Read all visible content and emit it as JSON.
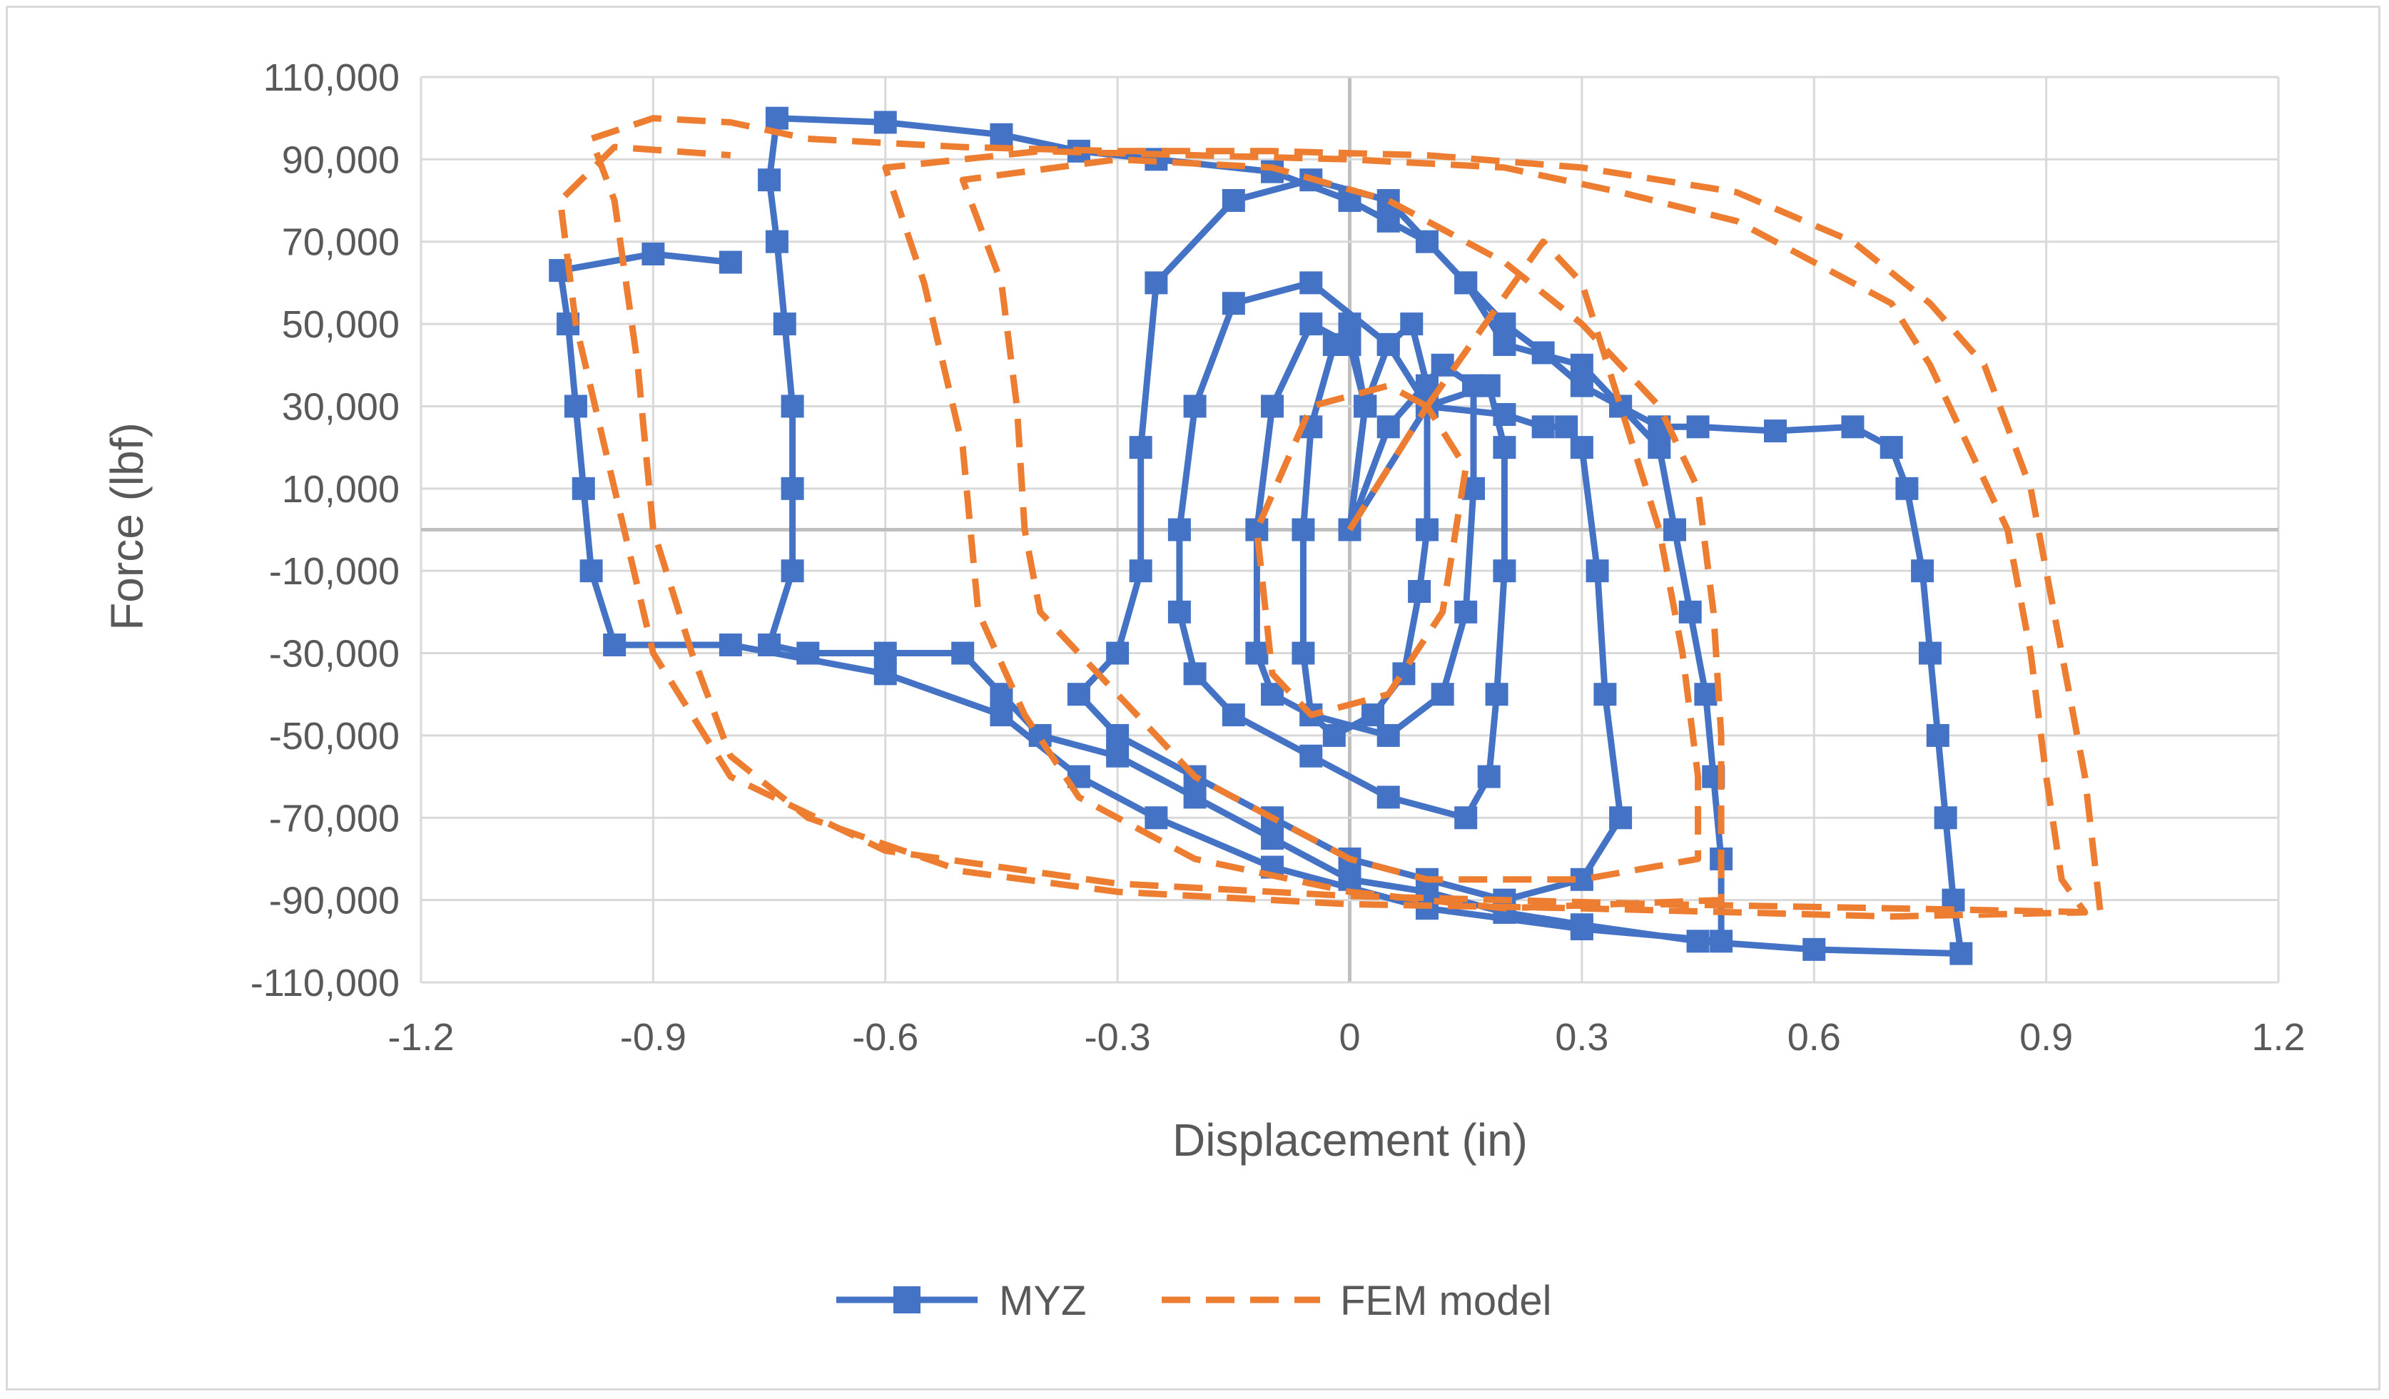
{
  "chart_data": {
    "type": "scatter",
    "title": "",
    "xlabel": "Displacement (in)",
    "ylabel": "Force (lbf)",
    "xlim": [
      -1.2,
      1.2
    ],
    "ylim": [
      -110000,
      110000
    ],
    "x_ticks": [
      -1.2,
      -0.9,
      -0.6,
      -0.3,
      0,
      0.3,
      0.6,
      0.9,
      1.2
    ],
    "x_tick_labels": [
      "-1.2",
      "-0.9",
      "-0.6",
      "-0.3",
      "0",
      "0.3",
      "0.6",
      "0.9",
      "1.2"
    ],
    "y_ticks": [
      110000,
      90000,
      70000,
      50000,
      30000,
      10000,
      -10000,
      -30000,
      -50000,
      -70000,
      -90000,
      -110000
    ],
    "y_tick_labels": [
      "110,000",
      "90,000",
      "70,000",
      "50,000",
      "30,000",
      "10,000",
      "-10,000",
      "-30,000",
      "-50,000",
      "-70,000",
      "-90,000",
      "-110,000"
    ],
    "grid": true,
    "legend_position": "bottom",
    "series": [
      {
        "name": "MYZ",
        "style": "solid line with square markers",
        "color": "#4472c4",
        "loops": [
          [
            [
              0.0,
              0
            ],
            [
              0.02,
              30000
            ],
            [
              0.05,
              45000
            ],
            [
              0.08,
              50000
            ],
            [
              0.1,
              35000
            ],
            [
              0.1,
              0
            ],
            [
              0.09,
              -15000
            ],
            [
              0.07,
              -35000
            ],
            [
              0.03,
              -45000
            ],
            [
              -0.02,
              -50000
            ],
            [
              -0.05,
              -45000
            ],
            [
              -0.06,
              -30000
            ],
            [
              -0.06,
              0
            ],
            [
              -0.05,
              25000
            ],
            [
              -0.02,
              45000
            ],
            [
              0.0,
              50000
            ],
            [
              0.02,
              30000
            ],
            [
              0.0,
              0
            ]
          ],
          [
            [
              0.0,
              0
            ],
            [
              0.05,
              25000
            ],
            [
              0.12,
              40000
            ],
            [
              0.16,
              35000
            ],
            [
              0.16,
              10000
            ],
            [
              0.15,
              -20000
            ],
            [
              0.12,
              -40000
            ],
            [
              0.05,
              -50000
            ],
            [
              -0.05,
              -45000
            ],
            [
              -0.1,
              -40000
            ],
            [
              -0.12,
              -30000
            ],
            [
              -0.12,
              0
            ],
            [
              -0.1,
              30000
            ],
            [
              -0.05,
              50000
            ],
            [
              0.0,
              45000
            ],
            [
              0.02,
              30000
            ],
            [
              0.0,
              0
            ]
          ],
          [
            [
              0.0,
              0
            ],
            [
              0.1,
              30000
            ],
            [
              0.18,
              35000
            ],
            [
              0.2,
              20000
            ],
            [
              0.2,
              -10000
            ],
            [
              0.19,
              -40000
            ],
            [
              0.18,
              -60000
            ],
            [
              0.15,
              -70000
            ],
            [
              0.05,
              -65000
            ],
            [
              -0.05,
              -55000
            ],
            [
              -0.15,
              -45000
            ],
            [
              -0.2,
              -35000
            ],
            [
              -0.22,
              -20000
            ],
            [
              -0.22,
              0
            ],
            [
              -0.2,
              30000
            ],
            [
              -0.15,
              55000
            ],
            [
              -0.05,
              60000
            ],
            [
              0.05,
              45000
            ],
            [
              0.1,
              30000
            ]
          ],
          [
            [
              0.1,
              30000
            ],
            [
              0.2,
              28000
            ],
            [
              0.25,
              25000
            ],
            [
              0.28,
              25000
            ],
            [
              0.3,
              20000
            ],
            [
              0.32,
              -10000
            ],
            [
              0.33,
              -40000
            ],
            [
              0.35,
              -70000
            ],
            [
              0.3,
              -85000
            ],
            [
              0.2,
              -90000
            ],
            [
              0.1,
              -85000
            ],
            [
              0.0,
              -80000
            ],
            [
              -0.1,
              -70000
            ],
            [
              -0.2,
              -60000
            ],
            [
              -0.3,
              -50000
            ],
            [
              -0.35,
              -40000
            ],
            [
              -0.3,
              -30000
            ],
            [
              -0.27,
              -10000
            ],
            [
              -0.27,
              20000
            ],
            [
              -0.25,
              60000
            ],
            [
              -0.15,
              80000
            ],
            [
              -0.05,
              85000
            ],
            [
              0.05,
              80000
            ],
            [
              0.15,
              60000
            ],
            [
              0.2,
              45000
            ],
            [
              0.3,
              40000
            ],
            [
              0.35,
              30000
            ],
            [
              0.4,
              25000
            ],
            [
              0.45,
              25000
            ],
            [
              0.55,
              24000
            ],
            [
              0.65,
              25000
            ],
            [
              0.7,
              20000
            ],
            [
              0.72,
              10000
            ],
            [
              0.74,
              -10000
            ],
            [
              0.75,
              -30000
            ],
            [
              0.76,
              -50000
            ],
            [
              0.77,
              -70000
            ],
            [
              0.78,
              -90000
            ],
            [
              0.79,
              -103000
            ],
            [
              0.6,
              -102000
            ],
            [
              0.45,
              -100000
            ],
            [
              0.3,
              -96000
            ],
            [
              0.2,
              -93000
            ],
            [
              0.1,
              -88000
            ],
            [
              0.0,
              -85000
            ],
            [
              -0.1,
              -75000
            ],
            [
              -0.2,
              -65000
            ],
            [
              -0.3,
              -55000
            ],
            [
              -0.4,
              -50000
            ],
            [
              -0.45,
              -40000
            ],
            [
              -0.5,
              -30000
            ],
            [
              -0.6,
              -30000
            ],
            [
              -0.7,
              -30000
            ],
            [
              -0.75,
              -28000
            ],
            [
              -0.72,
              -10000
            ],
            [
              -0.72,
              10000
            ],
            [
              -0.72,
              30000
            ],
            [
              -0.73,
              50000
            ],
            [
              -0.74,
              70000
            ],
            [
              -0.75,
              85000
            ],
            [
              -0.74,
              100000
            ],
            [
              -0.6,
              99000
            ],
            [
              -0.45,
              96000
            ],
            [
              -0.35,
              92000
            ],
            [
              -0.25,
              90000
            ],
            [
              -0.1,
              87000
            ],
            [
              0.0,
              80000
            ],
            [
              0.05,
              75000
            ],
            [
              0.1,
              70000
            ],
            [
              0.15,
              60000
            ],
            [
              0.2,
              50000
            ],
            [
              0.25,
              43000
            ],
            [
              0.3,
              35000
            ],
            [
              0.35,
              30000
            ],
            [
              0.4,
              20000
            ],
            [
              0.42,
              0
            ],
            [
              0.44,
              -20000
            ],
            [
              0.46,
              -40000
            ],
            [
              0.47,
              -60000
            ],
            [
              0.48,
              -80000
            ],
            [
              0.48,
              -100000
            ],
            [
              0.3,
              -97000
            ],
            [
              0.1,
              -92000
            ],
            [
              -0.1,
              -82000
            ],
            [
              -0.25,
              -70000
            ],
            [
              -0.35,
              -60000
            ],
            [
              -0.45,
              -45000
            ],
            [
              -0.6,
              -35000
            ],
            [
              -0.8,
              -28000
            ],
            [
              -0.95,
              -28000
            ],
            [
              -0.98,
              -10000
            ],
            [
              -0.99,
              10000
            ],
            [
              -1.0,
              30000
            ],
            [
              -1.01,
              50000
            ],
            [
              -1.02,
              63000
            ],
            [
              -0.9,
              67000
            ],
            [
              -0.8,
              65000
            ]
          ]
        ]
      },
      {
        "name": "FEM model",
        "style": "dashed line",
        "color": "#ed7d31",
        "loops": [
          [
            [
              -0.0,
              0
            ],
            [
              0.1,
              30000
            ],
            [
              0.15,
              15000
            ],
            [
              0.12,
              -20000
            ],
            [
              0.05,
              -40000
            ],
            [
              -0.05,
              -45000
            ],
            [
              -0.1,
              -35000
            ],
            [
              -0.12,
              0
            ],
            [
              -0.05,
              30000
            ],
            [
              0.05,
              35000
            ],
            [
              0.1,
              30000
            ]
          ],
          [
            [
              0.1,
              30000
            ],
            [
              0.25,
              70000
            ],
            [
              0.3,
              60000
            ],
            [
              0.35,
              30000
            ],
            [
              0.4,
              0
            ],
            [
              0.43,
              -30000
            ],
            [
              0.45,
              -60000
            ],
            [
              0.45,
              -80000
            ],
            [
              0.3,
              -85000
            ],
            [
              0.1,
              -85000
            ],
            [
              0.0,
              -80000
            ],
            [
              -0.2,
              -60000
            ],
            [
              -0.3,
              -40000
            ],
            [
              -0.4,
              -20000
            ],
            [
              -0.42,
              0
            ],
            [
              -0.43,
              30000
            ],
            [
              -0.45,
              60000
            ],
            [
              -0.5,
              85000
            ],
            [
              -0.3,
              90000
            ],
            [
              -0.1,
              88000
            ],
            [
              0.05,
              80000
            ],
            [
              0.2,
              65000
            ],
            [
              0.3,
              50000
            ],
            [
              0.4,
              30000
            ],
            [
              0.45,
              10000
            ],
            [
              0.47,
              -20000
            ],
            [
              0.48,
              -50000
            ],
            [
              0.48,
              -90000
            ],
            [
              0.2,
              -92000
            ],
            [
              0.0,
              -88000
            ],
            [
              -0.2,
              -80000
            ],
            [
              -0.35,
              -65000
            ],
            [
              -0.42,
              -45000
            ],
            [
              -0.48,
              -20000
            ],
            [
              -0.5,
              20000
            ],
            [
              -0.55,
              60000
            ],
            [
              -0.6,
              88000
            ],
            [
              -0.4,
              92000
            ],
            [
              -0.2,
              91000
            ],
            [
              0.0,
              90000
            ],
            [
              0.2,
              88000
            ],
            [
              0.35,
              82000
            ],
            [
              0.5,
              75000
            ],
            [
              0.6,
              65000
            ],
            [
              0.7,
              55000
            ],
            [
              0.75,
              40000
            ],
            [
              0.8,
              20000
            ],
            [
              0.85,
              0
            ],
            [
              0.88,
              -30000
            ],
            [
              0.9,
              -60000
            ],
            [
              0.92,
              -85000
            ],
            [
              0.95,
              -93000
            ],
            [
              0.7,
              -94000
            ],
            [
              0.5,
              -93000
            ],
            [
              0.3,
              -92000
            ],
            [
              0.0,
              -91000
            ],
            [
              -0.3,
              -88000
            ],
            [
              -0.5,
              -83000
            ],
            [
              -0.7,
              -70000
            ],
            [
              -0.8,
              -55000
            ],
            [
              -0.85,
              -30000
            ],
            [
              -0.9,
              0
            ],
            [
              -0.92,
              40000
            ],
            [
              -0.95,
              80000
            ],
            [
              -0.98,
              95000
            ],
            [
              -0.9,
              100000
            ],
            [
              -0.8,
              99000
            ],
            [
              -0.7,
              95000
            ],
            [
              -0.5,
              93000
            ],
            [
              -0.3,
              92000
            ],
            [
              -0.1,
              92000
            ],
            [
              0.1,
              91000
            ],
            [
              0.3,
              88000
            ],
            [
              0.5,
              82000
            ],
            [
              0.65,
              70000
            ],
            [
              0.75,
              55000
            ],
            [
              0.82,
              40000
            ],
            [
              0.88,
              10000
            ],
            [
              0.92,
              -30000
            ],
            [
              0.95,
              -60000
            ],
            [
              0.97,
              -93000
            ],
            [
              0.7,
              -92000
            ],
            [
              0.4,
              -91000
            ],
            [
              0.0,
              -89000
            ],
            [
              -0.3,
              -86000
            ],
            [
              -0.6,
              -78000
            ],
            [
              -0.8,
              -60000
            ],
            [
              -0.9,
              -30000
            ],
            [
              -0.95,
              10000
            ],
            [
              -1.0,
              50000
            ],
            [
              -1.02,
              80000
            ],
            [
              -0.95,
              93000
            ],
            [
              -0.8,
              91000
            ]
          ]
        ]
      }
    ]
  }
}
